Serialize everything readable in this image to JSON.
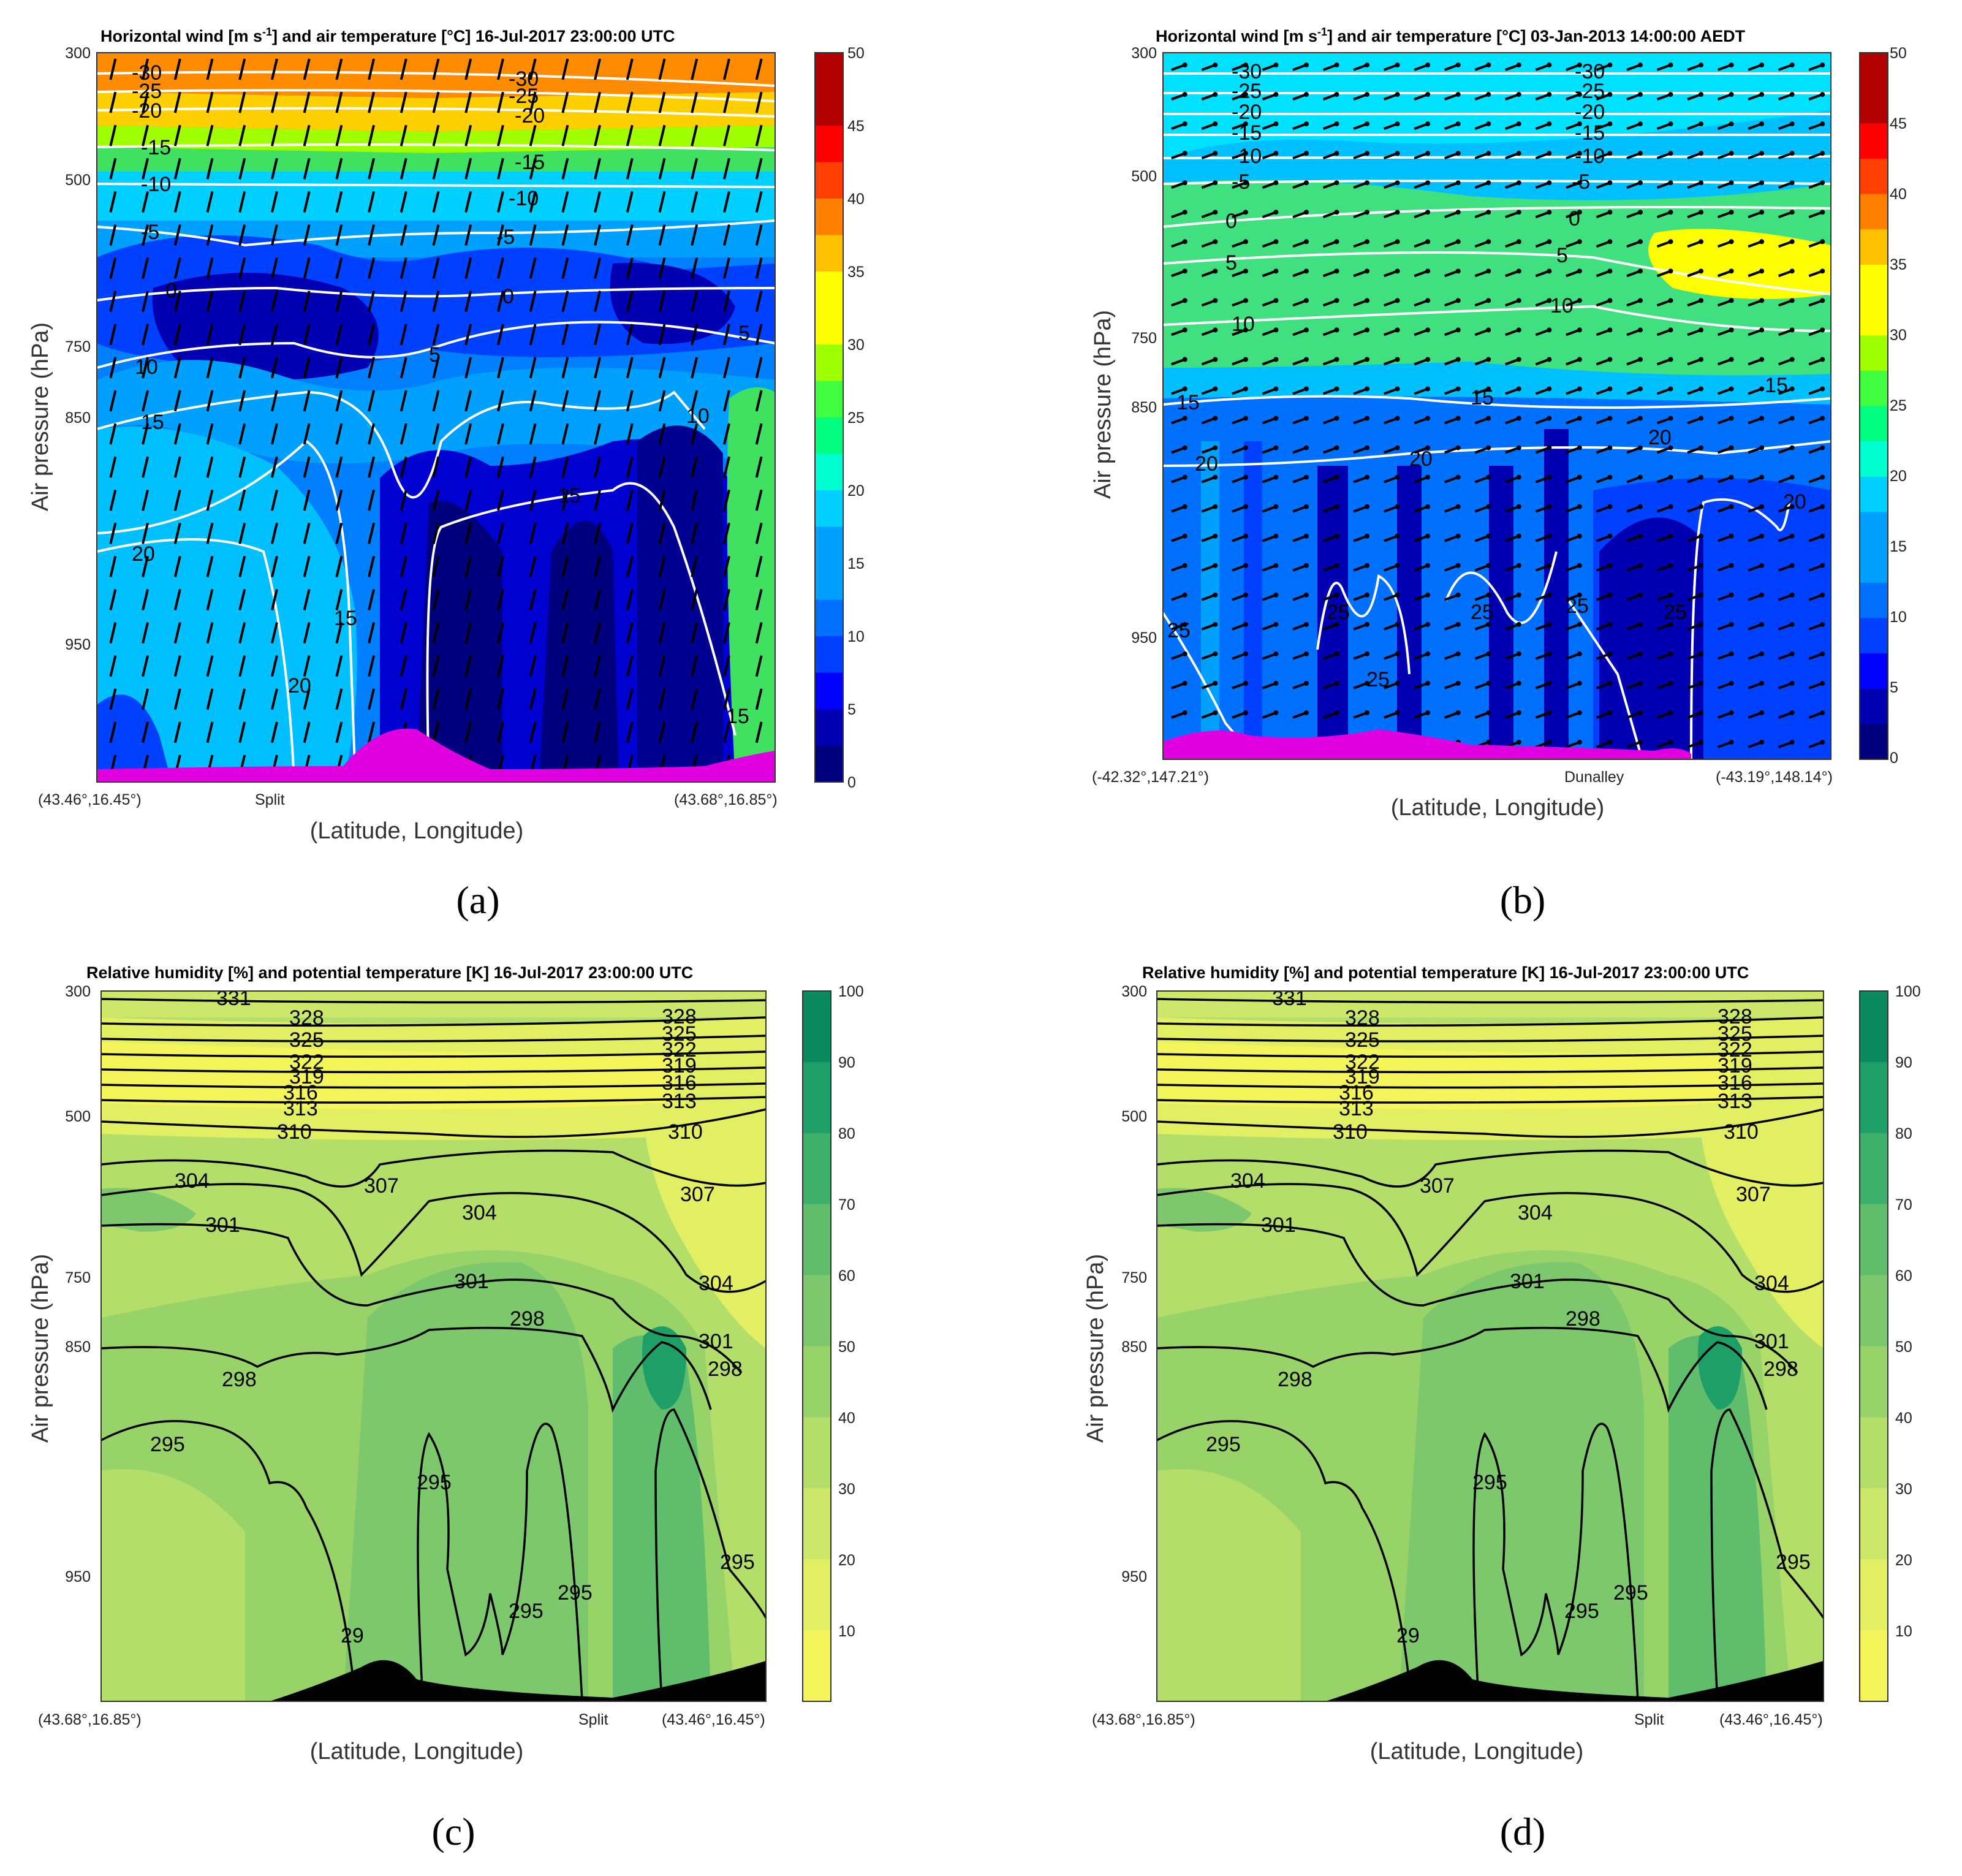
{
  "figure": {
    "panels": [
      {
        "id": "a",
        "label": "(a)",
        "title": "Horizontal wind [m s-1] and air temperature [°C] 16-Jul-2017 23:00:00 UTC",
        "title_main": "Horizontal wind [m s",
        "title_sup": "-1",
        "title_rest": "] and air temperature [°C] 16-Jul-2017 23:00:00 UTC",
        "ylabel": "Air pressure (hPa)",
        "xlabel": "(Latitude, Longitude)",
        "yticks": [
          "300",
          "500",
          "750",
          "850",
          "950"
        ],
        "xtick_left": "(43.46°,16.45°)",
        "xtick_right": "(43.68°,16.85°)",
        "xtick_place": "Split",
        "colorbar_ticks": [
          "50",
          "45",
          "40",
          "35",
          "30",
          "25",
          "20",
          "15",
          "10",
          "5",
          "0"
        ],
        "contour_labels": [
          "-30",
          "-25",
          "-20",
          "-15",
          "-10",
          "-5",
          "0",
          "5",
          "10",
          "15",
          "20",
          "15",
          "-30",
          "-25",
          "-20",
          "-15",
          "-10",
          "-5",
          "0",
          "5",
          "10",
          "15",
          "15",
          "20"
        ]
      },
      {
        "id": "b",
        "label": "(b)",
        "title": "Horizontal wind [m s-1] and air temperature [°C] 03-Jan-2013 14:00:00 AEDT",
        "title_main": "Horizontal wind [m s",
        "title_sup": "-1",
        "title_rest": "] and air temperature [°C] 03-Jan-2013 14:00:00 AEDT",
        "ylabel": "Air pressure (hPa)",
        "xlabel": "(Latitude, Longitude)",
        "yticks": [
          "300",
          "500",
          "750",
          "850",
          "950"
        ],
        "xtick_left": "(-42.32°,147.21°)",
        "xtick_right": "(-43.19°,148.14°)",
        "xtick_place": "Dunalley",
        "colorbar_ticks": [
          "50",
          "45",
          "40",
          "35",
          "30",
          "25",
          "20",
          "15",
          "10",
          "5",
          "0"
        ],
        "contour_labels": [
          "-30",
          "-25",
          "-20",
          "-15",
          "-10",
          "-5",
          "0",
          "5",
          "10",
          "15",
          "20",
          "25",
          "-30",
          "-25",
          "-20",
          "-15",
          "-10",
          "-5",
          "0",
          "5",
          "10",
          "15",
          "20",
          "25",
          "25",
          "25",
          "25",
          "25",
          "15",
          "20",
          "20"
        ]
      },
      {
        "id": "c",
        "label": "(c)",
        "title": "Relative humidity [%] and potential temperature [K] 16-Jul-2017 23:00:00 UTC",
        "ylabel": "Air pressure (hPa)",
        "xlabel": "(Latitude, Longitude)",
        "yticks": [
          "300",
          "500",
          "750",
          "850",
          "950"
        ],
        "xtick_left": "(43.68°,16.85°)",
        "xtick_right": "(43.46°,16.45°)",
        "xtick_place": "Split",
        "colorbar_ticks": [
          "100",
          "90",
          "80",
          "70",
          "60",
          "50",
          "40",
          "30",
          "20",
          "10"
        ],
        "contour_labels": [
          "331",
          "328",
          "325",
          "322",
          "319",
          "316",
          "313",
          "310",
          "307",
          "304",
          "301",
          "298",
          "295",
          "304",
          "301",
          "298",
          "295",
          "295",
          "295",
          "328",
          "325",
          "322",
          "319",
          "316",
          "313",
          "310",
          "307",
          "304",
          "301",
          "298",
          "295",
          "29"
        ]
      },
      {
        "id": "d",
        "label": "(d)",
        "title": "Relative humidity [%] and potential temperature [K] 16-Jul-2017 23:00:00 UTC",
        "ylabel": "Air pressure (hPa)",
        "xlabel": "(Latitude, Longitude)",
        "yticks": [
          "300",
          "500",
          "750",
          "850",
          "950"
        ],
        "xtick_left": "(43.68°,16.85°)",
        "xtick_right": "(43.46°,16.45°)",
        "xtick_place": "Split",
        "colorbar_ticks": [
          "100",
          "90",
          "80",
          "70",
          "60",
          "50",
          "40",
          "30",
          "20",
          "10"
        ],
        "contour_labels": [
          "331",
          "328",
          "325",
          "322",
          "319",
          "316",
          "313",
          "310",
          "307",
          "304",
          "301",
          "298",
          "295",
          "304",
          "301",
          "298",
          "295",
          "295",
          "295",
          "328",
          "325",
          "322",
          "319",
          "316",
          "313",
          "310",
          "307",
          "304",
          "301",
          "298",
          "295",
          "29"
        ]
      }
    ]
  },
  "colors": {
    "wind_scale": [
      "#00007f",
      "#0000b2",
      "#0000ff",
      "#0040ff",
      "#0070ff",
      "#00a0ff",
      "#00d0ff",
      "#00ffd0",
      "#00ff80",
      "#40ff40",
      "#a0ff00",
      "#ffff00",
      "#ffc000",
      "#ff8000",
      "#ff4000",
      "#ff0000",
      "#b20000"
    ],
    "rh_scale": [
      "#f4f55a",
      "#e3ef62",
      "#cde76a",
      "#b3de6a",
      "#98d36a",
      "#7dc86c",
      "#5fbd6c",
      "#3fb06b",
      "#1f9f68",
      "#0b8a60"
    ],
    "terrain_wind": "#e000e0",
    "terrain_rh": "#000000"
  },
  "chart_data": [
    {
      "type": "heatmap",
      "title": "Horizontal wind [m s-1] and air temperature [°C] 16-Jul-2017 23:00:00 UTC",
      "xlabel": "(Latitude, Longitude)",
      "ylabel": "Air pressure (hPa)",
      "y_ticks": [
        300,
        500,
        750,
        850,
        950
      ],
      "colorbar": {
        "min": 0,
        "max": 50,
        "step": 5
      },
      "contour_variable": "air temperature (°C)",
      "contour_levels": [
        -30,
        -25,
        -20,
        -15,
        -10,
        -5,
        0,
        5,
        10,
        15,
        20
      ]
    },
    {
      "type": "heatmap",
      "title": "Horizontal wind [m s-1] and air temperature [°C] 03-Jan-2013 14:00:00 AEDT",
      "xlabel": "(Latitude, Longitude)",
      "ylabel": "Air pressure (hPa)",
      "y_ticks": [
        300,
        500,
        750,
        850,
        950
      ],
      "colorbar": {
        "min": 0,
        "max": 50,
        "step": 5
      },
      "contour_variable": "air temperature (°C)",
      "contour_levels": [
        -30,
        -25,
        -20,
        -15,
        -10,
        -5,
        0,
        5,
        10,
        15,
        20,
        25
      ]
    },
    {
      "type": "heatmap",
      "title": "Relative humidity [%] and potential temperature [K] 16-Jul-2017 23:00:00 UTC",
      "xlabel": "(Latitude, Longitude)",
      "ylabel": "Air pressure (hPa)",
      "y_ticks": [
        300,
        500,
        750,
        850,
        950
      ],
      "colorbar": {
        "min": 0,
        "max": 100,
        "step": 10
      },
      "contour_variable": "potential temperature (K)",
      "contour_levels": [
        295,
        298,
        301,
        304,
        307,
        310,
        313,
        316,
        319,
        322,
        325,
        328,
        331
      ]
    },
    {
      "type": "heatmap",
      "title": "Relative humidity [%] and potential temperature [K] 16-Jul-2017 23:00:00 UTC",
      "xlabel": "(Latitude, Longitude)",
      "ylabel": "Air pressure (hPa)",
      "y_ticks": [
        300,
        500,
        750,
        850,
        950
      ],
      "colorbar": {
        "min": 0,
        "max": 100,
        "step": 10
      },
      "contour_variable": "potential temperature (K)",
      "contour_levels": [
        295,
        298,
        301,
        304,
        307,
        310,
        313,
        316,
        319,
        322,
        325,
        328,
        331
      ]
    }
  ]
}
